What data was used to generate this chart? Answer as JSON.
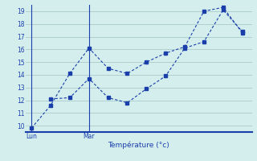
{
  "line1_x": [
    0,
    1,
    2,
    3,
    4,
    5,
    6,
    7,
    8,
    9,
    10,
    11
  ],
  "line1_y": [
    9.8,
    11.6,
    14.1,
    16.1,
    14.5,
    14.1,
    15.0,
    15.7,
    16.2,
    19.0,
    19.3,
    17.3
  ],
  "line2_x": [
    1,
    2,
    3,
    4,
    5,
    6,
    7,
    8,
    9,
    10,
    11
  ],
  "line2_y": [
    12.1,
    12.2,
    13.7,
    12.2,
    11.8,
    12.9,
    13.9,
    16.1,
    16.6,
    19.1,
    17.4
  ],
  "line_color": "#1a3eaa",
  "background_color": "#d4eeee",
  "grid_color": "#aacaca",
  "xlabel": "Température (°c)",
  "ylim": [
    9.5,
    19.5
  ],
  "xlim": [
    -0.3,
    11.5
  ],
  "yticks": [
    10,
    11,
    12,
    13,
    14,
    15,
    16,
    17,
    18,
    19
  ],
  "lun_x": 0,
  "mar_x": 3,
  "lun_label": "Lun",
  "mar_label": "Mar"
}
